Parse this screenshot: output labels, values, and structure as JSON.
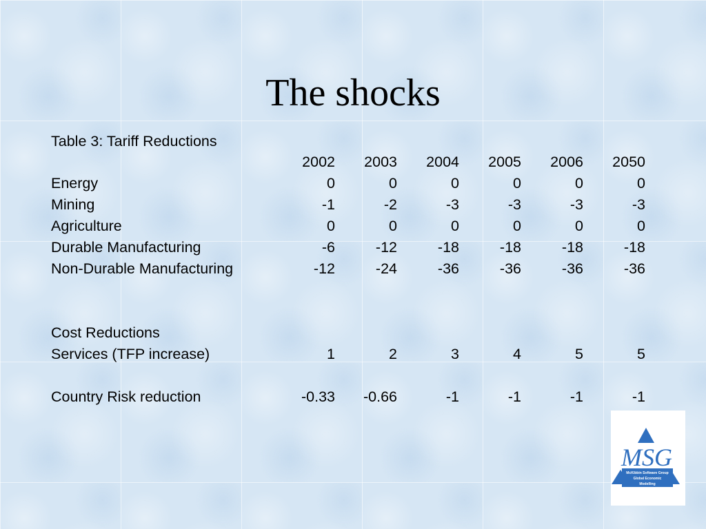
{
  "slide": {
    "title": "The shocks"
  },
  "table": {
    "caption": "Table 3: Tariff Reductions",
    "years": [
      "2002",
      "2003",
      "2004",
      "2005",
      "2006",
      "2050"
    ],
    "tariff_rows": [
      {
        "label": "Energy",
        "values": [
          "0",
          "0",
          "0",
          "0",
          "0",
          "0"
        ]
      },
      {
        "label": "Mining",
        "values": [
          "-1",
          "-2",
          "-3",
          "-3",
          "-3",
          "-3"
        ]
      },
      {
        "label": "Agriculture",
        "values": [
          "0",
          "0",
          "0",
          "0",
          "0",
          "0"
        ]
      },
      {
        "label": "Durable Manufacturing",
        "values": [
          "-6",
          "-12",
          "-18",
          "-18",
          "-18",
          "-18"
        ]
      },
      {
        "label": "Non-Durable Manufacturing",
        "values": [
          "-12",
          "-24",
          "-36",
          "-36",
          "-36",
          "-36"
        ]
      }
    ],
    "cost_heading": "Cost Reductions",
    "services_row": {
      "label": "Services (TFP increase)",
      "values": [
        "1",
        "2",
        "3",
        "4",
        "5",
        "5"
      ]
    },
    "risk_row": {
      "label": "Country Risk reduction",
      "values": [
        "-0.33",
        "-0.66",
        "-1",
        "-1",
        "-1",
        "-1"
      ]
    }
  },
  "logo": {
    "text": "MSG",
    "line1": "McKibbin Software Group",
    "line2": "Global Economic",
    "line3": "Modelling",
    "color": "#2f6fbf"
  }
}
